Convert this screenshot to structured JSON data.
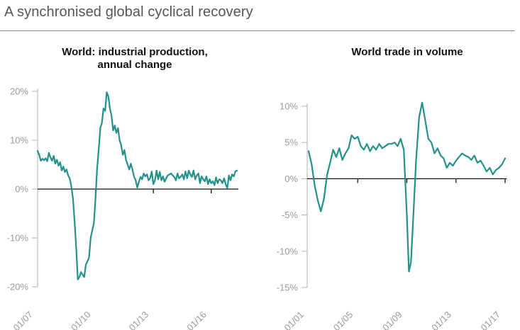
{
  "page": {
    "title": "A synchronised global cyclical recovery",
    "line_color": "#23918a"
  },
  "chart_data": [
    {
      "type": "line",
      "title_lines": [
        "World: industrial production,",
        "annual change"
      ],
      "xlabel": "",
      "ylabel": "",
      "x_tick_labels": [
        "01/07",
        "01/10",
        "01/13",
        "01/16"
      ],
      "x_range": [
        "2007-01",
        "2017-05"
      ],
      "ylim": [
        -20,
        20
      ],
      "y_ticks": [
        {
          "value": 20,
          "label": "20%"
        },
        {
          "value": 10,
          "label": "10%"
        },
        {
          "value": 0,
          "label": "0%"
        },
        {
          "value": -10,
          "label": "-10%"
        },
        {
          "value": -20,
          "label": "-20%"
        }
      ],
      "grid": false,
      "series": [
        {
          "x": [
            "2007-01",
            "2007-02",
            "2007-03",
            "2007-04",
            "2007-05",
            "2007-06",
            "2007-07",
            "2007-08",
            "2007-09",
            "2007-10",
            "2007-11",
            "2007-12",
            "2008-01",
            "2008-02",
            "2008-03",
            "2008-04",
            "2008-05",
            "2008-06",
            "2008-07",
            "2008-08",
            "2008-09",
            "2008-10",
            "2008-11",
            "2008-12",
            "2009-01",
            "2009-02",
            "2009-03",
            "2009-04",
            "2009-05",
            "2009-06",
            "2009-07",
            "2009-08",
            "2009-09",
            "2009-10",
            "2009-11",
            "2009-12",
            "2010-01",
            "2010-02",
            "2010-03",
            "2010-04",
            "2010-05",
            "2010-06",
            "2010-07",
            "2010-08",
            "2010-09",
            "2010-10",
            "2010-11",
            "2010-12",
            "2011-01",
            "2011-02",
            "2011-03",
            "2011-04",
            "2011-05",
            "2011-06",
            "2011-07",
            "2011-08",
            "2011-09",
            "2011-10",
            "2011-11",
            "2011-12",
            "2012-01",
            "2012-02",
            "2012-03",
            "2012-04",
            "2012-05",
            "2012-06",
            "2012-07",
            "2012-08",
            "2012-09",
            "2012-10",
            "2012-11",
            "2012-12",
            "2013-01",
            "2013-02",
            "2013-03",
            "2013-04",
            "2013-05",
            "2013-06",
            "2013-07",
            "2013-08",
            "2013-09",
            "2013-10",
            "2013-11",
            "2013-12",
            "2014-01",
            "2014-02",
            "2014-03",
            "2014-04",
            "2014-05",
            "2014-06",
            "2014-07",
            "2014-08",
            "2014-09",
            "2014-10",
            "2014-11",
            "2014-12",
            "2015-01",
            "2015-02",
            "2015-03",
            "2015-04",
            "2015-05",
            "2015-06",
            "2015-07",
            "2015-08",
            "2015-09",
            "2015-10",
            "2015-11",
            "2015-12",
            "2016-01",
            "2016-02",
            "2016-03",
            "2016-04",
            "2016-05",
            "2016-06",
            "2016-07",
            "2016-08",
            "2016-09",
            "2016-10",
            "2016-11",
            "2016-12",
            "2017-01",
            "2017-02",
            "2017-03",
            "2017-04",
            "2017-05"
          ],
          "values": [
            7.8,
            7.0,
            5.8,
            6.2,
            5.9,
            6.3,
            5.7,
            7.4,
            6.5,
            5.8,
            6.8,
            5.2,
            6.0,
            4.8,
            5.5,
            3.8,
            4.6,
            3.5,
            4.0,
            2.8,
            2.2,
            0.5,
            -2.0,
            -6.5,
            -12.0,
            -18.5,
            -18.0,
            -17.0,
            -17.5,
            -18.0,
            -15.5,
            -14.8,
            -14.0,
            -10.0,
            -8.5,
            -7.0,
            -2.0,
            4.0,
            8.0,
            12.5,
            13.5,
            16.5,
            16.0,
            19.8,
            19.0,
            16.5,
            15.0,
            12.0,
            13.0,
            11.5,
            12.5,
            10.0,
            9.0,
            7.0,
            8.0,
            6.0,
            5.0,
            4.0,
            5.2,
            4.0,
            2.5,
            1.8,
            0.3,
            1.5,
            2.5,
            2.0,
            3.2,
            2.6,
            3.0,
            1.8,
            2.2,
            3.6,
            1.0,
            1.8,
            3.8,
            2.0,
            3.5,
            1.8,
            2.6,
            1.5,
            2.2,
            2.8,
            3.0,
            3.2,
            2.8,
            2.5,
            1.8,
            3.2,
            2.2,
            2.5,
            3.0,
            2.0,
            3.6,
            2.2,
            3.8,
            3.0,
            2.5,
            3.8,
            2.0,
            2.8,
            3.2,
            1.2,
            2.6,
            2.0,
            1.6,
            2.6,
            1.0,
            2.0,
            1.2,
            1.6,
            0.8,
            2.4,
            1.2,
            2.0,
            1.8,
            1.2,
            2.2,
            1.0,
            0.2,
            2.8,
            1.8,
            3.0,
            2.6,
            3.6,
            3.8
          ]
        }
      ]
    },
    {
      "type": "line",
      "title_lines": [
        "World trade in volume"
      ],
      "xlabel": "",
      "ylabel": "",
      "x_tick_labels": [
        "01/01",
        "01/05",
        "01/09",
        "01/13",
        "01/17"
      ],
      "x_range": [
        "2001-01",
        "2017-01"
      ],
      "ylim": [
        -15,
        10
      ],
      "y_ticks": [
        {
          "value": 10,
          "label": "10%"
        },
        {
          "value": 5,
          "label": "5%"
        },
        {
          "value": 0,
          "label": "0%"
        },
        {
          "value": -5,
          "label": "-5%"
        },
        {
          "value": -10,
          "label": "-10%"
        },
        {
          "value": -15,
          "label": "-15%"
        }
      ],
      "grid": false,
      "series": [
        {
          "x": [
            "2001-01",
            "2001-04",
            "2001-07",
            "2001-10",
            "2002-01",
            "2002-04",
            "2002-07",
            "2002-10",
            "2003-01",
            "2003-04",
            "2003-07",
            "2003-10",
            "2004-01",
            "2004-04",
            "2004-07",
            "2004-10",
            "2005-01",
            "2005-04",
            "2005-07",
            "2005-10",
            "2006-01",
            "2006-04",
            "2006-07",
            "2006-10",
            "2007-01",
            "2007-04",
            "2007-07",
            "2007-10",
            "2008-01",
            "2008-04",
            "2008-07",
            "2008-10",
            "2009-01",
            "2009-03",
            "2009-05",
            "2009-07",
            "2009-10",
            "2010-01",
            "2010-04",
            "2010-07",
            "2010-10",
            "2011-01",
            "2011-04",
            "2011-07",
            "2011-10",
            "2012-01",
            "2012-04",
            "2012-07",
            "2012-10",
            "2013-01",
            "2013-04",
            "2013-07",
            "2013-10",
            "2014-01",
            "2014-04",
            "2014-07",
            "2014-10",
            "2015-01",
            "2015-04",
            "2015-07",
            "2015-10",
            "2016-01",
            "2016-04",
            "2016-07",
            "2016-10",
            "2017-01"
          ],
          "values": [
            3.8,
            2.0,
            -1.0,
            -3.0,
            -4.5,
            -2.8,
            0.5,
            2.2,
            4.0,
            3.0,
            4.2,
            2.6,
            3.5,
            4.2,
            6.0,
            5.5,
            5.8,
            4.5,
            4.0,
            4.8,
            3.8,
            4.5,
            4.0,
            4.8,
            4.2,
            4.5,
            4.8,
            4.8,
            5.0,
            4.5,
            5.5,
            4.0,
            -5.0,
            -12.8,
            -11.5,
            -6.0,
            2.5,
            8.5,
            10.5,
            8.0,
            5.5,
            5.0,
            3.5,
            4.2,
            3.2,
            2.8,
            1.5,
            2.2,
            1.8,
            2.5,
            3.0,
            3.5,
            3.2,
            3.0,
            2.6,
            3.2,
            2.2,
            2.5,
            1.8,
            1.0,
            1.5,
            0.6,
            1.2,
            1.5,
            2.0,
            2.8
          ]
        }
      ]
    }
  ]
}
